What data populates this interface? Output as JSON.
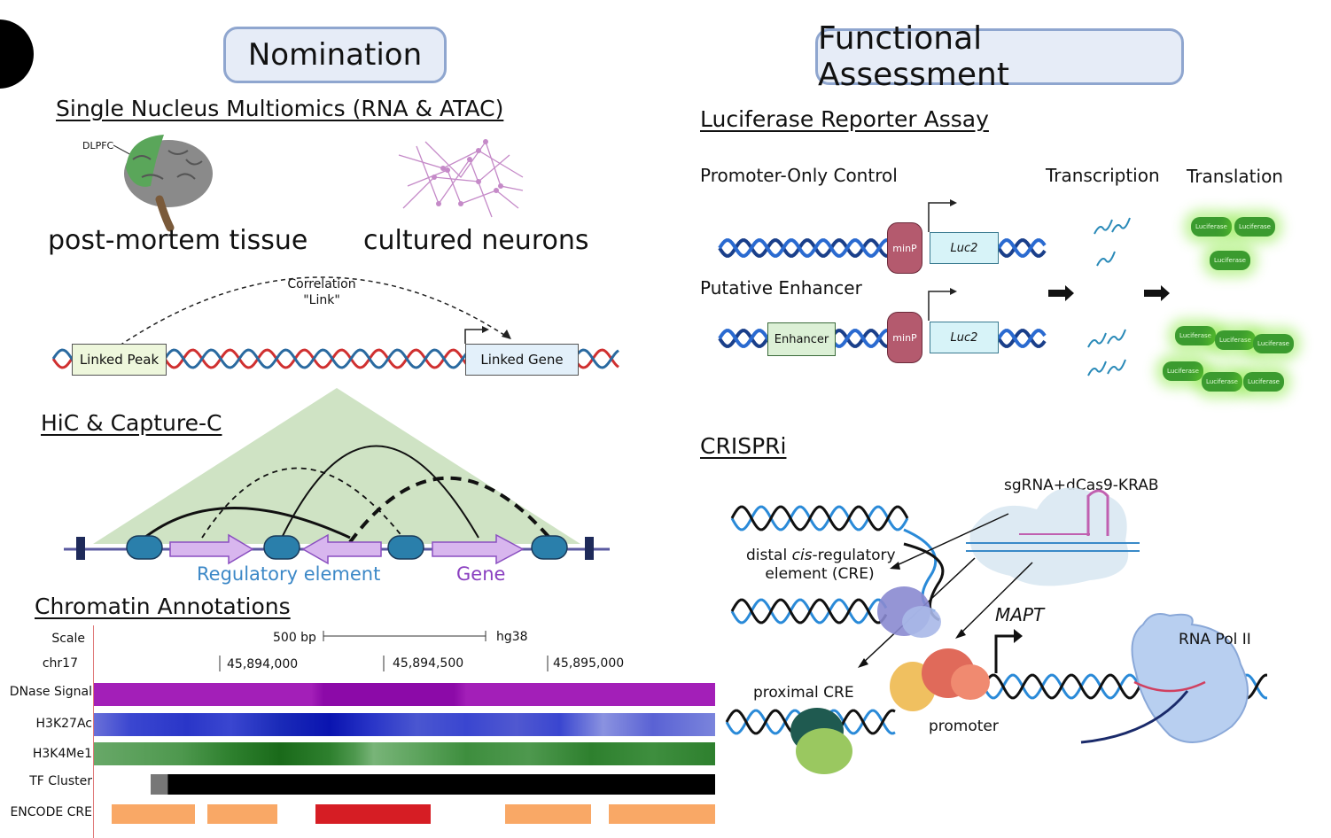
{
  "headers": {
    "nomination": "Nomination",
    "functional": "Functional Assessment"
  },
  "multiomics": {
    "title": "Single Nucleus Multiomics (RNA & ATAC)",
    "dlpfc": "DLPFC",
    "tissue_label": "post-mortem tissue",
    "neurons_label": "cultured neurons",
    "correlation_line1": "Correlation",
    "correlation_line2": "\"Link\"",
    "linked_peak": "Linked Peak",
    "linked_gene": "Linked Gene"
  },
  "hic": {
    "title": "HiC & Capture-C",
    "regulatory_label": "Regulatory element",
    "gene_label": "Gene"
  },
  "chromatin": {
    "title": "Chromatin Annotations",
    "scale_label": "Scale",
    "scale_value": "500 bp",
    "assembly": "hg38",
    "chrom": "chr17",
    "ticks": [
      "45,894,000",
      "45,894,500",
      "45,895,000"
    ],
    "tracks": [
      "DNase Signal",
      "H3K27Ac",
      "H3K4Me1",
      "TF Cluster",
      "ENCODE CRE"
    ],
    "colors": {
      "dnase": "#9a12b0",
      "h3k27ac": "#3a46d0",
      "h3k4me1": "#3f8f3a",
      "cre_orange": "#f9a866",
      "cre_red": "#d61d24"
    }
  },
  "luciferase": {
    "title": "Luciferase Reporter Assay",
    "promoter_only": "Promoter-Only Control",
    "putative_enhancer": "Putative Enhancer",
    "transcription": "Transcription",
    "translation": "Translation",
    "minp": "minP",
    "luc2": "Luc2",
    "enhancer": "Enhancer",
    "luciferase": "Luciferase"
  },
  "crispri": {
    "title": "CRISPRi",
    "sgrna": "sgRNA+dCas9-KRAB",
    "distal_pre": "distal ",
    "distal_cis": "cis",
    "distal_post": "-regulatory",
    "distal_line2": "element (CRE)",
    "proximal": "proximal CRE",
    "promoter": "promoter",
    "mapt": "MAPT",
    "rnapol": "RNA Pol II"
  }
}
